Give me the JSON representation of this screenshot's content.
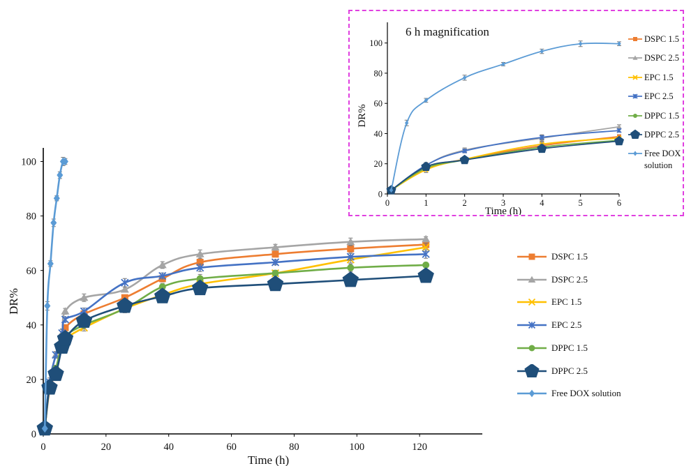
{
  "chart_data": [
    {
      "type": "line",
      "title": "",
      "xlabel": "Time (h)",
      "ylabel": "DR%",
      "xlim": [
        0,
        140
      ],
      "ylim": [
        0,
        100
      ],
      "xticks": [
        "0",
        "20",
        "40",
        "60",
        "80",
        "100",
        "120"
      ],
      "yticks": [
        "0",
        "20",
        "40",
        "60",
        "80",
        "100"
      ],
      "legend_position": "right",
      "error_bars": true,
      "series": [
        {
          "name": "DSPC 1.5",
          "color": "#ED7D31",
          "marker": "square",
          "x": [
            0.5,
            2,
            4,
            6,
            7,
            13,
            26,
            38,
            50,
            74,
            98,
            122
          ],
          "y": [
            2,
            16,
            23,
            35,
            39,
            44,
            50,
            57,
            63,
            66,
            68,
            69.5
          ]
        },
        {
          "name": "DSPC 2.5",
          "color": "#A5A5A5",
          "marker": "triangle",
          "x": [
            0.5,
            2,
            4,
            6,
            7,
            13,
            26,
            38,
            50,
            74,
            98,
            122
          ],
          "y": [
            2,
            19,
            29,
            37,
            45,
            50,
            53,
            62,
            66,
            68.5,
            70.5,
            71.5
          ]
        },
        {
          "name": "EPC 1.5",
          "color": "#FFC000",
          "marker": "x",
          "x": [
            0.5,
            2,
            4,
            6,
            7,
            13,
            26,
            38,
            50,
            74,
            98,
            122
          ],
          "y": [
            2,
            17,
            23,
            33,
            35,
            39,
            46,
            51,
            55,
            59,
            64,
            68.5
          ]
        },
        {
          "name": "EPC 2.5",
          "color": "#4472C4",
          "marker": "star",
          "x": [
            0.5,
            2,
            4,
            6,
            7,
            13,
            26,
            38,
            50,
            74,
            98,
            122
          ],
          "y": [
            2,
            19,
            29,
            37,
            42,
            45,
            55.5,
            58,
            61,
            63,
            65,
            66
          ]
        },
        {
          "name": "DPPC 1.5",
          "color": "#70AD47",
          "marker": "circle",
          "x": [
            0.5,
            2,
            4,
            6,
            7,
            13,
            26,
            38,
            50,
            74,
            98,
            122
          ],
          "y": [
            2,
            17,
            24,
            33,
            36,
            40,
            46,
            54,
            57,
            59,
            61,
            62
          ]
        },
        {
          "name": "DPPC 2.5",
          "color": "#1F4E79",
          "marker": "pentagon",
          "x": [
            0.5,
            2,
            4,
            6,
            7,
            13,
            26,
            38,
            50,
            74,
            98,
            122
          ],
          "y": [
            2,
            17,
            22,
            32,
            35,
            41.5,
            47,
            50.5,
            53.5,
            55,
            56.5,
            58
          ]
        },
        {
          "name": "Free DOX solution",
          "color": "#5B9BD5",
          "marker": "diamond",
          "x": [
            0.5,
            1.3,
            2.3,
            3.3,
            4.3,
            5.3,
            6.3,
            7
          ],
          "y": [
            2,
            47,
            62.5,
            77.5,
            86.5,
            95,
            100,
            100
          ]
        }
      ]
    },
    {
      "type": "line",
      "title": "6 h magnification",
      "xlabel": "Time (h)",
      "ylabel": "DR%",
      "xlim": [
        0,
        6
      ],
      "ylim": [
        0,
        110
      ],
      "xticks": [
        "0",
        "1",
        "2",
        "3",
        "4",
        "5",
        "6"
      ],
      "yticks": [
        "0",
        "20",
        "40",
        "60",
        "80",
        "100"
      ],
      "legend_position": "right",
      "border_color": "#E040E0",
      "series": [
        {
          "name": "DSPC 1.5",
          "color": "#ED7D31",
          "marker": "square",
          "x": [
            0.1,
            1,
            2,
            4,
            6
          ],
          "y": [
            2.5,
            17,
            23,
            32,
            38
          ]
        },
        {
          "name": "DSPC 2.5",
          "color": "#A5A5A5",
          "marker": "triangle",
          "x": [
            0.1,
            1,
            2,
            4,
            6
          ],
          "y": [
            2.5,
            19,
            29,
            37,
            44.5
          ]
        },
        {
          "name": "EPC 1.5",
          "color": "#FFC000",
          "marker": "x",
          "x": [
            0.1,
            1,
            2,
            4,
            6
          ],
          "y": [
            2.5,
            16,
            23,
            33,
            37
          ]
        },
        {
          "name": "EPC 2.5",
          "color": "#4472C4",
          "marker": "star",
          "x": [
            0.1,
            1,
            2,
            4,
            6
          ],
          "y": [
            2.5,
            19,
            28.5,
            37.5,
            42
          ]
        },
        {
          "name": "DPPC 1.5",
          "color": "#70AD47",
          "marker": "circle",
          "x": [
            0.1,
            1,
            2,
            4,
            6
          ],
          "y": [
            2.5,
            17,
            22.5,
            31,
            35.5
          ]
        },
        {
          "name": "DPPC 2.5",
          "color": "#1F4E79",
          "marker": "pentagon",
          "x": [
            0.1,
            1,
            2,
            4,
            6
          ],
          "y": [
            2.5,
            18,
            22.5,
            30,
            35
          ]
        },
        {
          "name": "Free DOX\nsolution",
          "color": "#5B9BD5",
          "marker": "diamond",
          "x": [
            0.1,
            0.5,
            1,
            2,
            3,
            4,
            5,
            6
          ],
          "y": [
            2.5,
            47,
            62,
            77,
            86,
            94.5,
            99.5,
            99.5
          ]
        }
      ]
    }
  ]
}
